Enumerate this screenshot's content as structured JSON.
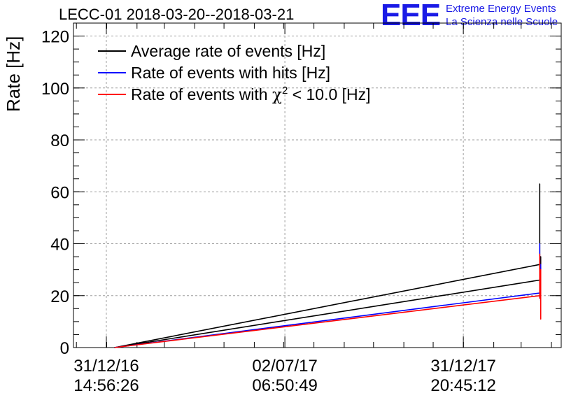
{
  "header": {
    "title": "LECC-01 2018-03-20--2018-03-21",
    "logo_text": "EEE",
    "logo_line1": "Extreme Energy Events",
    "logo_line2": "La Scienza nelle Scuole"
  },
  "colors": {
    "avg": "#000000",
    "hits": "#0000ff",
    "chi2": "#ff0000",
    "logo": "#1a1ae6",
    "grid": "#9e9e9e"
  },
  "chart_data": {
    "type": "line",
    "title": "LECC-01 2018-03-20--2018-03-21",
    "ylabel": "Rate [Hz]",
    "xlabel": "",
    "ylim": [
      0,
      125
    ],
    "yticks": [
      0,
      20,
      40,
      60,
      80,
      100,
      120
    ],
    "xlim": [
      "2016-11-28",
      "2018-04-11"
    ],
    "xticks": [
      {
        "date": "2016-12-31T14:56:26",
        "label": [
          "31/12/16",
          "14:56:26"
        ]
      },
      {
        "date": "2017-07-02T06:50:49",
        "label": [
          "02/07/17",
          "06:50:49"
        ]
      },
      {
        "date": "2017-12-31T20:45:12",
        "label": [
          "31/12/17",
          "20:45:12"
        ]
      }
    ],
    "grid": true,
    "legend": {
      "position": "top-left",
      "entries": [
        {
          "series": "avg",
          "label": "Average rate of events [Hz]"
        },
        {
          "series": "hits",
          "label": "Rate of events with hits [Hz]"
        },
        {
          "series": "chi2",
          "label_prefix": "Rate of events with ",
          "label_symbol": "χ",
          "label_sup": "2",
          "label_suffix": " < 10.0 [Hz]"
        }
      ]
    },
    "series": [
      {
        "key": "avg",
        "name": "Average rate of events [Hz]",
        "color": "#000000",
        "points": [
          [
            "2017-01-09",
            0
          ],
          [
            "2018-03-20",
            32
          ],
          [
            "2018-03-20",
            63
          ],
          [
            "2018-03-20",
            40
          ],
          [
            "2018-03-20",
            55
          ],
          [
            "2018-03-20",
            30
          ],
          [
            "2018-03-20",
            26
          ],
          [
            "2017-01-09",
            0
          ],
          [
            "2018-03-20",
            26
          ],
          [
            "2018-03-21",
            35
          ],
          [
            "2018-03-21",
            22
          ],
          [
            "2018-03-21",
            30
          ]
        ]
      },
      {
        "key": "hits",
        "name": "Rate of events with hits [Hz]",
        "color": "#0000ff",
        "points": [
          [
            "2017-01-09",
            0
          ],
          [
            "2018-03-20",
            21
          ],
          [
            "2018-03-20",
            40
          ],
          [
            "2018-03-20",
            25
          ],
          [
            "2018-03-21",
            32
          ],
          [
            "2018-03-21",
            18
          ],
          [
            "2018-03-21",
            28
          ]
        ]
      },
      {
        "key": "chi2",
        "name": "Rate of events with χ2 < 10.0 [Hz]",
        "color": "#ff0000",
        "points": [
          [
            "2017-01-09",
            0
          ],
          [
            "2018-03-20",
            20
          ],
          [
            "2018-03-20",
            36
          ],
          [
            "2018-03-20",
            19
          ],
          [
            "2018-03-21",
            30
          ],
          [
            "2018-03-21",
            11
          ],
          [
            "2018-03-21",
            27
          ],
          [
            "2018-03-21",
            19
          ]
        ]
      }
    ]
  }
}
